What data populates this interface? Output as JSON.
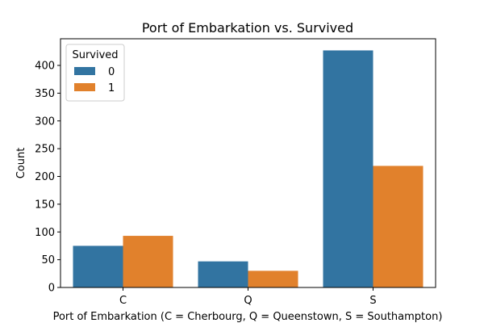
{
  "chart_data": {
    "type": "bar",
    "title": "Port of Embarkation vs. Survived",
    "xlabel": "Port of Embarkation (C = Cherbourg, Q = Queenstown, S = Southampton)",
    "ylabel": "Count",
    "categories": [
      "C",
      "Q",
      "S"
    ],
    "series": [
      {
        "name": "0",
        "values": [
          75,
          47,
          427
        ],
        "color": "#3274a1"
      },
      {
        "name": "1",
        "values": [
          93,
          30,
          219
        ],
        "color": "#e1812c"
      }
    ],
    "ylim": [
      0,
      448
    ],
    "yticks": [
      0,
      50,
      100,
      150,
      200,
      250,
      300,
      350,
      400
    ],
    "legend": {
      "title": "Survived",
      "position": "top-left"
    },
    "grid": false
  }
}
